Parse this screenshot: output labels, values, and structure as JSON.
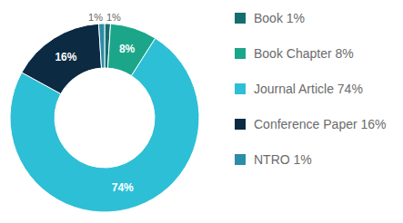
{
  "chart_data": {
    "type": "pie",
    "donut": true,
    "categories": [
      "Book 1%",
      "Book Chapter 8%",
      "Journal Article 74%",
      "Conference Paper 16%",
      "NTRO 1%"
    ],
    "values": [
      1,
      8,
      74,
      16,
      1
    ],
    "value_labels": [
      "1%",
      "8%",
      "74%",
      "16%",
      "1%"
    ],
    "colors": [
      "#166d70",
      "#1ba68a",
      "#2dbfd6",
      "#0c2a42",
      "#2b8da8"
    ],
    "data_labels": true,
    "legend": "right"
  }
}
